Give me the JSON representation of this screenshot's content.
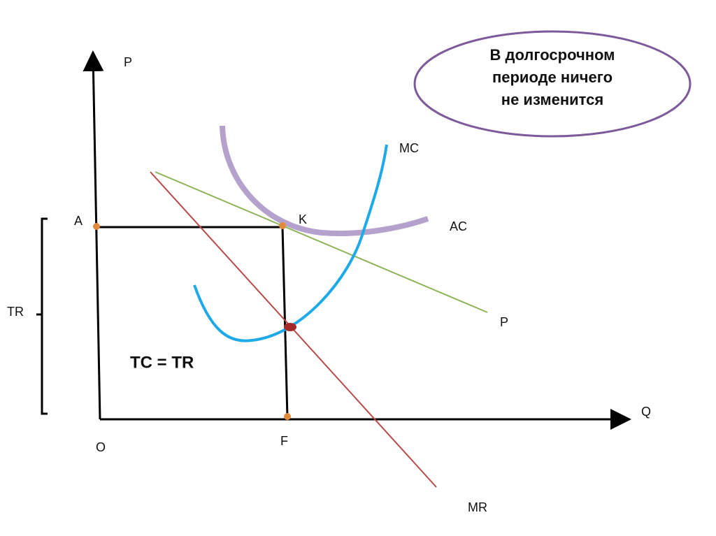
{
  "callout": {
    "lines": [
      "В долгосрочном",
      "периоде ничего",
      "не изменится"
    ]
  },
  "axes": {
    "y_label": "P",
    "x_label": "Q",
    "origin": "O"
  },
  "points": {
    "a": "A",
    "k": "K",
    "f": "F"
  },
  "curves": {
    "mc": "MC",
    "ac": "AC",
    "demand": "P",
    "mr": "MR"
  },
  "bracket": "TR",
  "equation": "TC = TR"
}
